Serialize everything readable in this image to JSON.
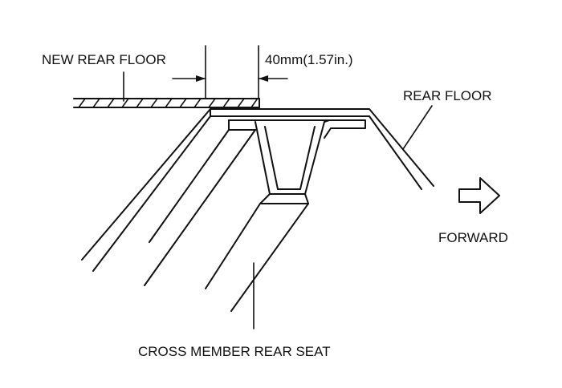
{
  "labels": {
    "new_rear_floor": "NEW REAR FLOOR",
    "dimension": "40mm(1.57in.)",
    "rear_floor": "REAR FLOOR",
    "forward": "FORWARD",
    "cross_member": "CROSS MEMBER REAR SEAT"
  },
  "icons": {
    "forward_arrow": "forward-arrow-icon"
  },
  "colors": {
    "line": "#111111",
    "background": "#ffffff"
  }
}
